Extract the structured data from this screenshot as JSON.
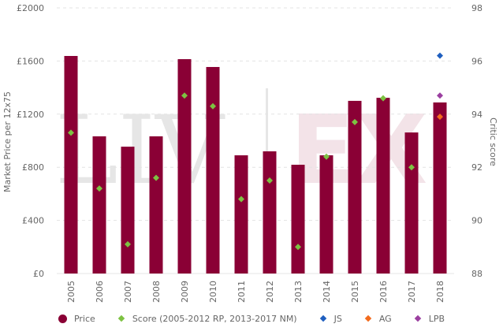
{
  "chart_data": {
    "type": "bar",
    "title": "",
    "xlabel": "",
    "ylabel": "Market Price per 12x75",
    "y2label": "Critic score",
    "ylim": [
      0,
      2000
    ],
    "y2lim": [
      88,
      98
    ],
    "yticks": [
      "£0",
      "£400",
      "£800",
      "£1200",
      "£1600",
      "£2000"
    ],
    "yticks_values": [
      0,
      400,
      800,
      1200,
      1600,
      2000
    ],
    "y2ticks": [
      "88",
      "90",
      "92",
      "94",
      "96",
      "98"
    ],
    "y2ticks_values": [
      88,
      90,
      92,
      94,
      96,
      98
    ],
    "grid": true,
    "legend_position": "bottom",
    "categories": [
      "2005",
      "2006",
      "2007",
      "2008",
      "2009",
      "2010",
      "2011",
      "2012",
      "2013",
      "2014",
      "2015",
      "2016",
      "2017",
      "2018"
    ],
    "series": [
      {
        "name": "Price",
        "type": "bar",
        "axis": "left",
        "color": "#8a0035",
        "values": [
          1638,
          1033,
          955,
          1033,
          1614,
          1555,
          890,
          920,
          819,
          890,
          1300,
          1323,
          1062,
          1288
        ]
      },
      {
        "name": "Score (2005-2012 RP, 2013-2017 NM)",
        "type": "scatter",
        "axis": "right",
        "color": "#7dc242",
        "values": [
          93.3,
          91.2,
          89.1,
          91.6,
          94.7,
          94.3,
          90.8,
          91.5,
          89.0,
          92.4,
          93.7,
          94.6,
          92.0,
          null
        ]
      },
      {
        "name": "JS",
        "type": "scatter",
        "axis": "right",
        "color": "#1f5fbf",
        "values": [
          null,
          null,
          null,
          null,
          null,
          null,
          null,
          null,
          null,
          null,
          null,
          null,
          null,
          96.2
        ]
      },
      {
        "name": "AG",
        "type": "scatter",
        "axis": "right",
        "color": "#f26b1d",
        "values": [
          null,
          null,
          null,
          null,
          null,
          null,
          null,
          null,
          null,
          null,
          null,
          null,
          null,
          93.9
        ]
      },
      {
        "name": "LPB",
        "type": "scatter",
        "axis": "right",
        "color": "#9b3fa0",
        "values": [
          null,
          null,
          null,
          null,
          null,
          null,
          null,
          null,
          null,
          null,
          null,
          null,
          null,
          94.7
        ]
      }
    ],
    "watermark": "LIV | EX"
  },
  "legend": {
    "items": [
      {
        "label": "Price",
        "shape": "circle",
        "color": "#8a0035"
      },
      {
        "label": "Score (2005-2012 RP, 2013-2017 NM)",
        "shape": "diamond",
        "color": "#7dc242"
      },
      {
        "label": "JS",
        "shape": "diamond",
        "color": "#1f5fbf"
      },
      {
        "label": "AG",
        "shape": "diamond",
        "color": "#f26b1d"
      },
      {
        "label": "LPB",
        "shape": "diamond",
        "color": "#9b3fa0"
      }
    ]
  }
}
